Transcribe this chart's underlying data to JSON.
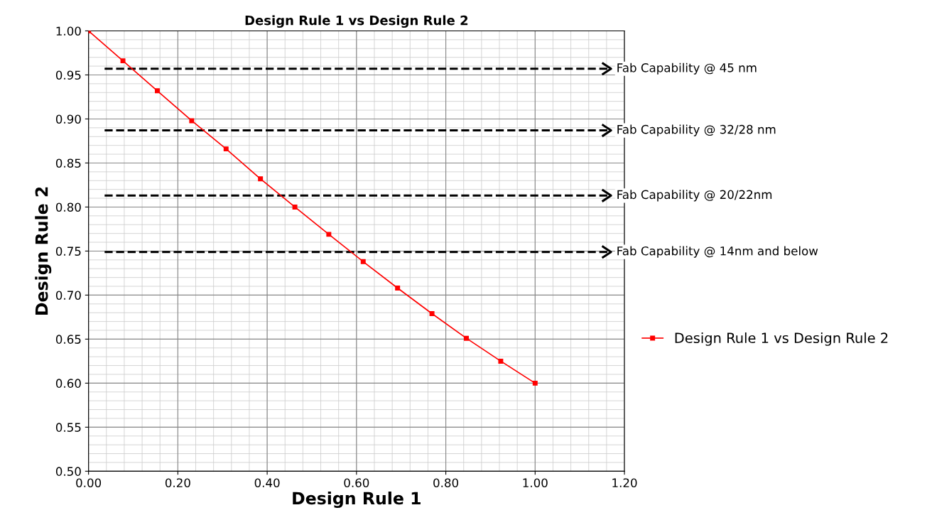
{
  "chart_data": {
    "type": "line",
    "title": "Design Rule 1 vs Design Rule 2",
    "xlabel": "Design Rule 1",
    "ylabel": "Design Rule 2",
    "x": [
      0,
      0.077,
      0.154,
      0.231,
      0.308,
      0.385,
      0.462,
      0.538,
      0.615,
      0.692,
      0.769,
      0.846,
      0.923,
      1.0
    ],
    "series": [
      {
        "name": "Design Rule 1 vs Design Rule 2",
        "color": "#ff0000",
        "values": [
          1.0,
          0.966,
          0.932,
          0.898,
          0.866,
          0.832,
          0.8,
          0.769,
          0.738,
          0.708,
          0.679,
          0.651,
          0.625,
          0.6
        ]
      }
    ],
    "xlim": [
      0,
      1.2
    ],
    "xticks": [
      {
        "value": 0,
        "label": "0.00"
      },
      {
        "value": 0.2,
        "label": "0.20"
      },
      {
        "value": 0.4,
        "label": "0.40"
      },
      {
        "value": 0.6,
        "label": "0.60"
      },
      {
        "value": 0.8,
        "label": "0.80"
      },
      {
        "value": 1.0,
        "label": "1.00"
      },
      {
        "value": 1.2,
        "label": "1.20"
      }
    ],
    "ylim": [
      0.5,
      1.0
    ],
    "yticks": [
      {
        "value": 0.5,
        "label": "0.50"
      },
      {
        "value": 0.55,
        "label": "0.55"
      },
      {
        "value": 0.6,
        "label": "0.60"
      },
      {
        "value": 0.65,
        "label": "0.65"
      },
      {
        "value": 0.7,
        "label": "0.70"
      },
      {
        "value": 0.75,
        "label": "0.75"
      },
      {
        "value": 0.8,
        "label": "0.80"
      },
      {
        "value": 0.85,
        "label": "0.85"
      },
      {
        "value": 0.9,
        "label": "0.90"
      },
      {
        "value": 0.95,
        "label": "0.95"
      },
      {
        "value": 1.0,
        "label": "1.00"
      }
    ],
    "ref_lines": [
      {
        "axis": "y",
        "value": 0.957,
        "label": "Fab Capability @ 45 nm",
        "color": "#000000",
        "line_style": "dashed"
      },
      {
        "axis": "y",
        "value": 0.887,
        "label": "Fab Capability @ 32/28 nm",
        "color": "#000000",
        "line_style": "dashed"
      },
      {
        "axis": "y",
        "value": 0.813,
        "label": "Fab Capability @ 20/22nm",
        "color": "#000000",
        "line_style": "dashed"
      },
      {
        "axis": "y",
        "value": 0.749,
        "label": "Fab Capability @ 14nm and below",
        "color": "#000000",
        "line_style": "dashed"
      }
    ],
    "grid": true,
    "legend": "right",
    "marker": "square",
    "line_style": "solid"
  }
}
